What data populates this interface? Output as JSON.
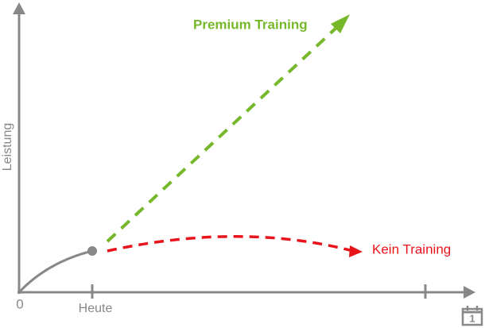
{
  "premium_label": "Premium Training",
  "none_label": "Kein Training",
  "y_axis_label": "Leistung",
  "origin_label": "0",
  "today_label": "Heute",
  "calendar_label": "1"
}
